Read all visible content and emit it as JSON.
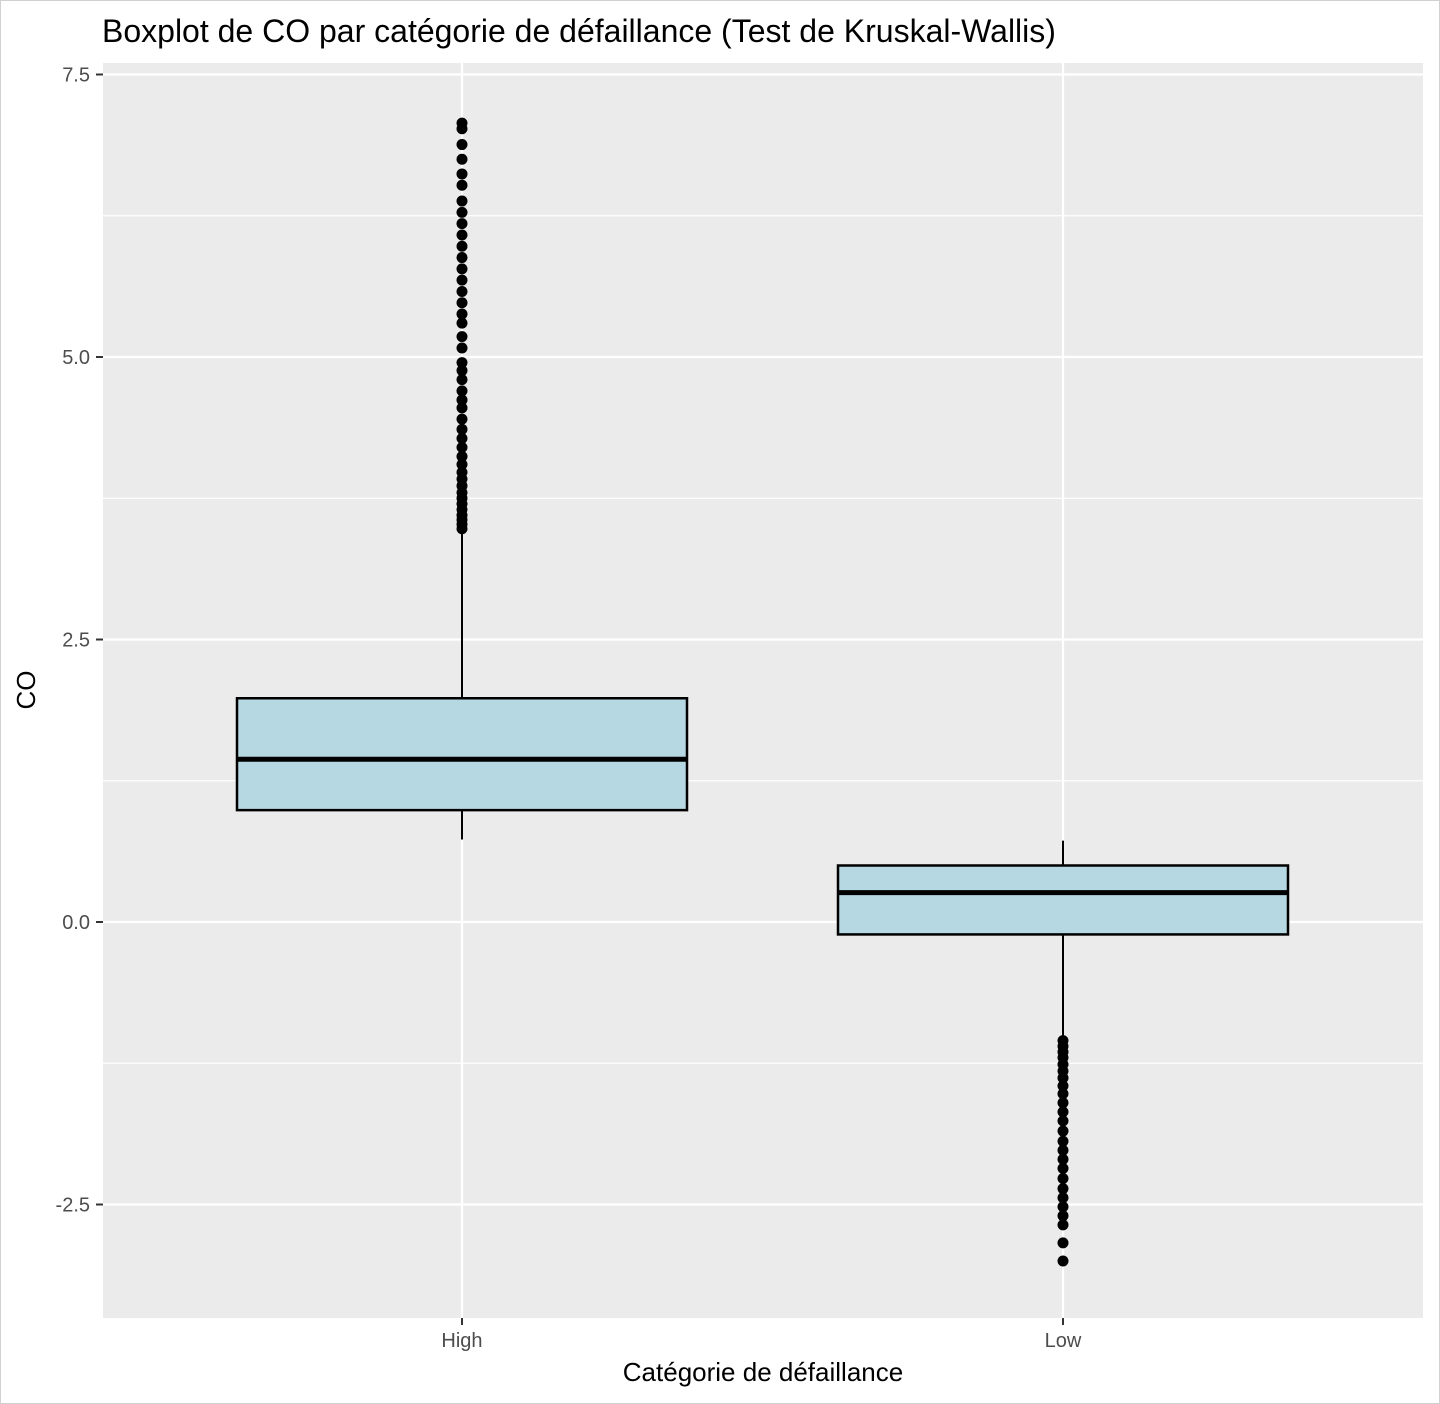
{
  "chart_data": {
    "type": "boxplot",
    "title": "Boxplot de CO par catégorie de défaillance (Test de Kruskal-Wallis)",
    "xlabel": "Catégorie de défaillance",
    "ylabel": "CO",
    "categories": [
      "High",
      "Low"
    ],
    "ylim": [
      -3.5,
      7.6
    ],
    "yticks": [
      -2.5,
      0,
      2.5,
      5,
      7.5
    ],
    "ytick_labels": [
      "-2.5",
      "0.0",
      "2.5",
      "5.0",
      "7.5"
    ],
    "grid": true,
    "legend": "none",
    "colors": {
      "panel": "#ebebeb",
      "grid": "#ffffff",
      "box_fill": "#b5d8e3",
      "stroke": "#000000"
    },
    "boxes": [
      {
        "category": "High",
        "whisker_low": 0.73,
        "q1": 0.99,
        "median": 1.44,
        "q3": 1.98,
        "whisker_high": 3.45,
        "outliers": [
          3.48,
          3.52,
          3.56,
          3.6,
          3.65,
          3.7,
          3.75,
          3.8,
          3.86,
          3.92,
          3.98,
          4.05,
          4.12,
          4.2,
          4.28,
          4.36,
          4.45,
          4.55,
          4.62,
          4.7,
          4.8,
          4.88,
          4.95,
          5.08,
          5.18,
          5.3,
          5.38,
          5.48,
          5.58,
          5.68,
          5.78,
          5.88,
          5.98,
          6.08,
          6.18,
          6.28,
          6.38,
          6.52,
          6.62,
          6.75,
          6.88,
          7.02,
          7.07
        ]
      },
      {
        "category": "Low",
        "whisker_low": -1.02,
        "q1": -0.11,
        "median": 0.26,
        "q3": 0.5,
        "whisker_high": 0.72,
        "outliers": [
          -1.05,
          -1.1,
          -1.15,
          -1.2,
          -1.26,
          -1.32,
          -1.38,
          -1.45,
          -1.52,
          -1.6,
          -1.68,
          -1.76,
          -1.85,
          -1.94,
          -2.02,
          -2.1,
          -2.18,
          -2.27,
          -2.36,
          -2.44,
          -2.52,
          -2.6,
          -2.68,
          -2.84,
          -3.0
        ]
      }
    ]
  }
}
